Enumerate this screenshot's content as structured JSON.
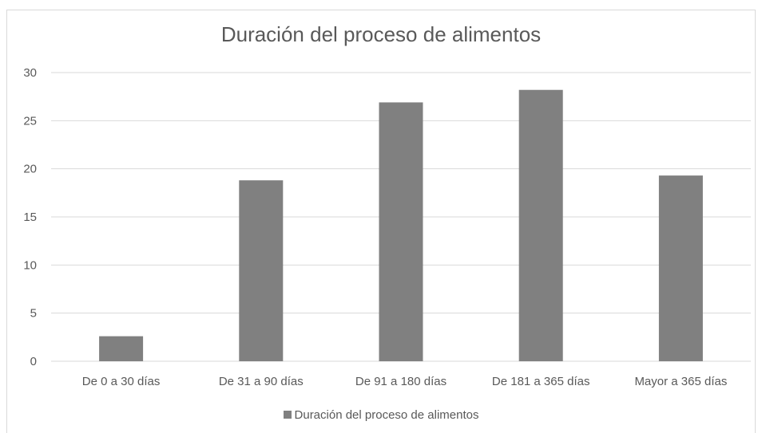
{
  "chart_data": {
    "type": "bar",
    "title": "Duración del proceso de alimentos",
    "categories": [
      "De 0 a 30 días",
      "De 31 a 90 días",
      "De 91 a 180 días",
      "De 181 a 365 días",
      "Mayor a 365 días"
    ],
    "series": [
      {
        "name": "Duración del proceso de alimentos",
        "values": [
          2.6,
          18.8,
          26.9,
          28.2,
          19.3
        ]
      }
    ],
    "xlabel": "",
    "ylabel": "",
    "ylim": [
      0,
      30
    ],
    "yticks": [
      0,
      5,
      10,
      15,
      20,
      25,
      30
    ],
    "grid": true,
    "legend_position": "bottom",
    "colors": {
      "bar": "#808080",
      "grid": "#d9d9d9",
      "text": "#595959"
    }
  }
}
